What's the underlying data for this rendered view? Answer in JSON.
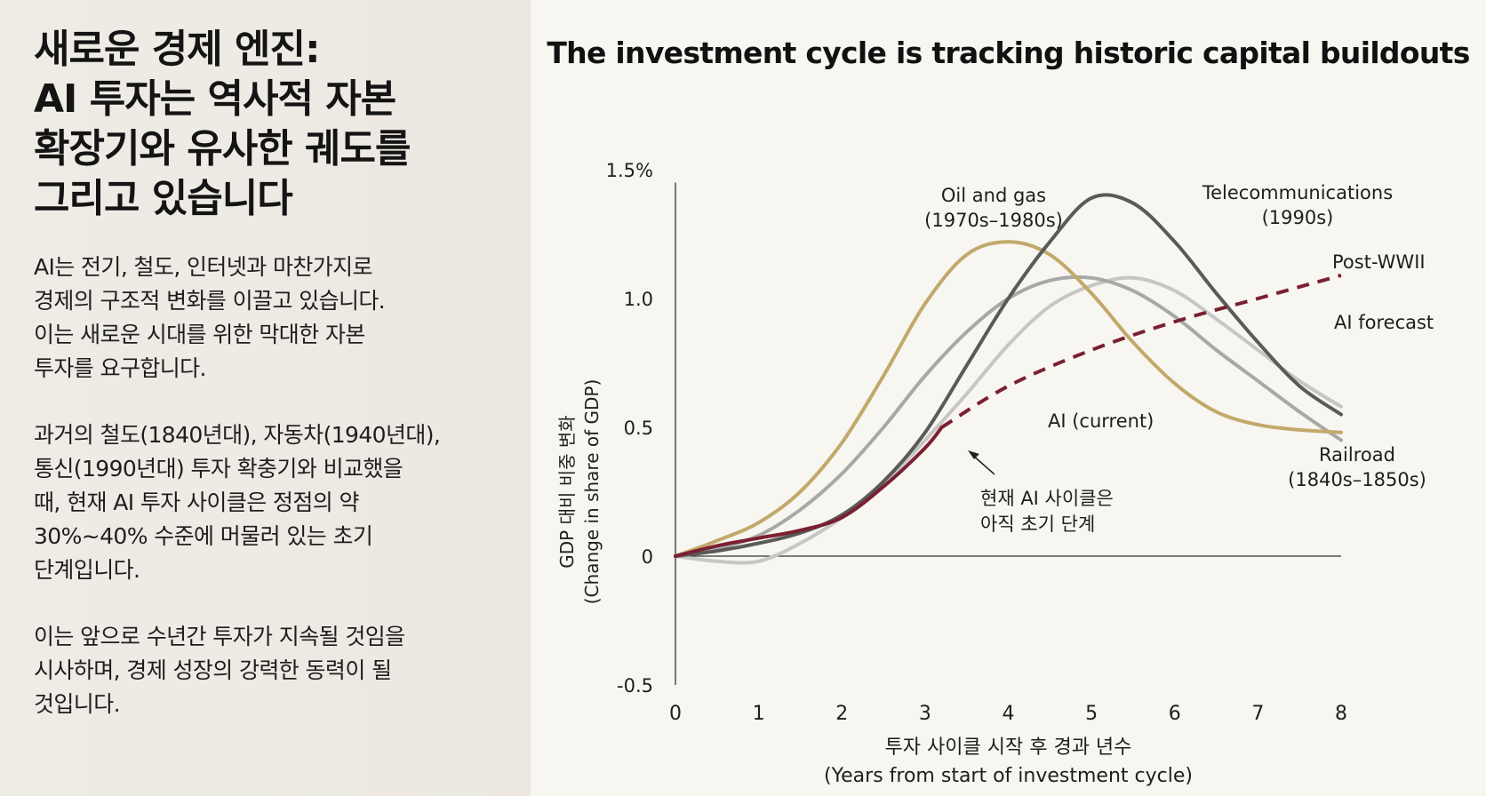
{
  "left": {
    "headline": [
      "새로운 경제 엔진:",
      "AI 투자는 역사적 자본",
      "확장기와 유사한 궤도를",
      "그리고 있습니다"
    ],
    "paragraph1": [
      "AI는 전기, 철도, 인터넷과 마찬가지로",
      "경제의 구조적 변화를 이끌고 있습니다.",
      "이는 새로운 시대를 위한 막대한 자본",
      "투자를 요구합니다."
    ],
    "paragraph2": [
      "과거의 철도(1840년대), 자동차(1940년대),",
      "통신(1990년대) 투자 확충기와 비교했을",
      "때, 현재 AI 투자 사이클은 정점의 약",
      "30%~40% 수준에 머물러 있는 초기",
      "단계입니다."
    ],
    "paragraph3": [
      "이는 앞으로 수년간 투자가 지속될 것임을",
      "시사하며, 경제 성장의 강력한 동력이 될",
      "것입니다."
    ]
  },
  "chart_data": {
    "type": "line",
    "title": "The investment cycle is tracking historic capital buildouts",
    "xlabel": [
      "투자 사이클 시작 후 경과 년수",
      "(Years from start of investment cycle)"
    ],
    "ylabel": [
      "GDP 대비 비중 변화",
      "(Change in share of GDP)"
    ],
    "xlim": [
      0,
      8
    ],
    "ylim": [
      -0.5,
      1.5
    ],
    "xticks": [
      0,
      1,
      2,
      3,
      4,
      5,
      6,
      7,
      8
    ],
    "xtick_labels": [
      "0",
      "1",
      "2",
      "3",
      "4",
      "5",
      "6",
      "7",
      "8"
    ],
    "yticks": [
      -0.5,
      0,
      0.5,
      1.0,
      1.5
    ],
    "ytick_labels": [
      "-0.5",
      "0",
      "0.5",
      "1.0",
      "1.5%"
    ],
    "grid": false,
    "series": [
      {
        "name": "Post-WWII",
        "color": "#c6c6c6",
        "x": [
          0,
          0.5,
          1,
          1.5,
          2,
          2.5,
          3,
          3.5,
          4,
          4.5,
          5,
          5.5,
          6,
          6.5,
          7,
          7.5,
          8
        ],
        "y": [
          0,
          -0.02,
          -0.02,
          0.05,
          0.15,
          0.28,
          0.45,
          0.63,
          0.82,
          0.97,
          1.05,
          1.08,
          1.03,
          0.92,
          0.8,
          0.68,
          0.58
        ]
      },
      {
        "name": "Railroad (1840s–1850s)",
        "color": "#a8a8a8",
        "x": [
          0,
          0.5,
          1,
          1.5,
          2,
          2.5,
          3,
          3.5,
          4,
          4.5,
          5,
          5.5,
          6,
          6.5,
          7,
          7.5,
          8
        ],
        "y": [
          0,
          0.03,
          0.08,
          0.18,
          0.32,
          0.5,
          0.7,
          0.87,
          1.0,
          1.07,
          1.08,
          1.03,
          0.93,
          0.8,
          0.68,
          0.56,
          0.45
        ]
      },
      {
        "name": "Oil and gas (1970s–1980s)",
        "color": "#c0a96a",
        "x": [
          0,
          0.5,
          1,
          1.5,
          2,
          2.5,
          3,
          3.5,
          4,
          4.5,
          5,
          5.5,
          6,
          6.5,
          7,
          7.5,
          8
        ],
        "y": [
          0,
          0.06,
          0.13,
          0.25,
          0.44,
          0.7,
          0.98,
          1.17,
          1.22,
          1.17,
          1.02,
          0.83,
          0.67,
          0.56,
          0.51,
          0.49,
          0.48
        ]
      },
      {
        "name": "Telecommunications (1990s)",
        "color": "#5a5a5a",
        "x": [
          0,
          0.5,
          1,
          1.5,
          2,
          2.5,
          3,
          3.5,
          4,
          4.5,
          5,
          5.5,
          6,
          6.5,
          7,
          7.5,
          8
        ],
        "y": [
          0,
          0.02,
          0.05,
          0.09,
          0.16,
          0.29,
          0.48,
          0.74,
          1.0,
          1.22,
          1.39,
          1.37,
          1.22,
          1.02,
          0.83,
          0.66,
          0.55
        ]
      },
      {
        "name": "AI (current)",
        "color": "#7a2030",
        "style": "solid",
        "x": [
          0,
          0.5,
          1,
          1.5,
          2,
          2.5,
          3,
          3.2
        ],
        "y": [
          0,
          0.04,
          0.07,
          0.1,
          0.15,
          0.27,
          0.42,
          0.5
        ]
      },
      {
        "name": "AI forecast",
        "color": "#7a2030",
        "style": "dashed",
        "x": [
          3.2,
          4,
          5,
          6,
          7,
          8
        ],
        "y": [
          0.5,
          0.66,
          0.8,
          0.91,
          1.0,
          1.09
        ]
      }
    ],
    "annotations": {
      "series_labels": [
        {
          "lines": [
            "Oil and gas",
            "(1970s–1980s)"
          ],
          "anchor": "middle"
        },
        {
          "lines": [
            "Telecommunications",
            "(1990s)"
          ],
          "anchor": "middle"
        },
        {
          "lines": [
            "Post-WWII"
          ],
          "anchor": "start"
        },
        {
          "lines": [
            "AI forecast"
          ],
          "anchor": "start"
        },
        {
          "lines": [
            "AI (current)"
          ],
          "anchor": "start"
        },
        {
          "lines": [
            "Railroad",
            "(1840s–1850s)"
          ],
          "anchor": "middle"
        }
      ],
      "callout": [
        "현재 AI 사이클은",
        "아직 초기 단계"
      ]
    }
  }
}
